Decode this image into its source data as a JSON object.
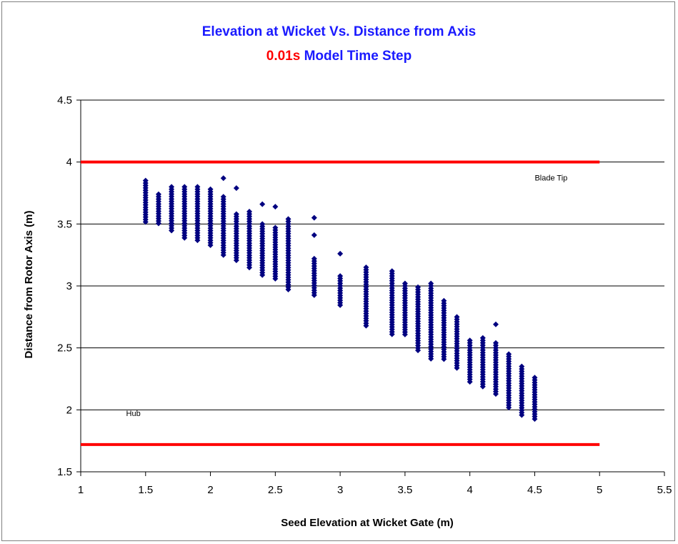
{
  "chart_data": {
    "type": "scatter",
    "title_line1": "Elevation at Wicket Vs. Distance from Axis",
    "title_line2_accent": "0.01s",
    "title_line2_rest": " Model Time Step",
    "xlabel": "Seed Elevation at Wicket Gate (m)",
    "ylabel": "Distance from Rotor Axis (m)",
    "xlim": [
      1,
      5.5
    ],
    "ylim": [
      1.5,
      4.5
    ],
    "x_ticks": [
      "1",
      "1.5",
      "2",
      "2.5",
      "3",
      "3.5",
      "4",
      "4.5",
      "5",
      "5.5"
    ],
    "y_ticks": [
      "1.5",
      "2",
      "2.5",
      "3",
      "3.5",
      "4",
      "4.5"
    ],
    "grid": "horizontal",
    "marker_color": "#000080",
    "line_color": "#ff0000",
    "reference_lines": [
      {
        "label": "Blade Tip",
        "y": 4.0,
        "x_start": 1,
        "x_end": 5,
        "label_x": 4.5,
        "label_y": 3.85
      },
      {
        "label": "Hub",
        "y": 1.72,
        "x_start": 1,
        "x_end": 5,
        "label_x": 1.35,
        "label_y": 1.95
      }
    ],
    "columns": [
      {
        "x": 1.5,
        "min": 3.51,
        "max": 3.85,
        "outliers": []
      },
      {
        "x": 1.6,
        "min": 3.49,
        "max": 3.74,
        "outliers": []
      },
      {
        "x": 1.7,
        "min": 3.43,
        "max": 3.8,
        "outliers": []
      },
      {
        "x": 1.8,
        "min": 3.38,
        "max": 3.8,
        "outliers": []
      },
      {
        "x": 1.9,
        "min": 3.36,
        "max": 3.8,
        "outliers": []
      },
      {
        "x": 2.0,
        "min": 3.31,
        "max": 3.78,
        "outliers": []
      },
      {
        "x": 2.1,
        "min": 3.23,
        "max": 3.72,
        "outliers": [
          3.87
        ]
      },
      {
        "x": 2.2,
        "min": 3.2,
        "max": 3.58,
        "outliers": [
          3.79
        ]
      },
      {
        "x": 2.3,
        "min": 3.14,
        "max": 3.6,
        "outliers": []
      },
      {
        "x": 2.4,
        "min": 3.08,
        "max": 3.5,
        "outliers": [
          3.66
        ]
      },
      {
        "x": 2.5,
        "min": 3.05,
        "max": 3.47,
        "outliers": [
          3.64
        ]
      },
      {
        "x": 2.6,
        "min": 2.97,
        "max": 3.54,
        "outliers": []
      },
      {
        "x": 2.8,
        "min": 2.92,
        "max": 3.22,
        "outliers": [
          3.41,
          3.55
        ]
      },
      {
        "x": 3.0,
        "min": 2.83,
        "max": 3.08,
        "outliers": [
          3.26
        ]
      },
      {
        "x": 3.2,
        "min": 2.67,
        "max": 3.15,
        "outliers": []
      },
      {
        "x": 3.4,
        "min": 2.61,
        "max": 3.12,
        "outliers": []
      },
      {
        "x": 3.5,
        "min": 2.59,
        "max": 3.02,
        "outliers": []
      },
      {
        "x": 3.6,
        "min": 2.48,
        "max": 2.99,
        "outliers": []
      },
      {
        "x": 3.7,
        "min": 2.41,
        "max": 3.02,
        "outliers": []
      },
      {
        "x": 3.8,
        "min": 2.4,
        "max": 2.88,
        "outliers": []
      },
      {
        "x": 3.9,
        "min": 2.32,
        "max": 2.75,
        "outliers": []
      },
      {
        "x": 4.0,
        "min": 2.22,
        "max": 2.56,
        "outliers": []
      },
      {
        "x": 4.1,
        "min": 2.17,
        "max": 2.58,
        "outliers": []
      },
      {
        "x": 4.2,
        "min": 2.11,
        "max": 2.54,
        "outliers": [
          2.69
        ]
      },
      {
        "x": 4.3,
        "min": 2.0,
        "max": 2.45,
        "outliers": []
      },
      {
        "x": 4.4,
        "min": 1.95,
        "max": 2.35,
        "outliers": []
      },
      {
        "x": 4.5,
        "min": 1.91,
        "max": 2.26,
        "outliers": []
      }
    ]
  }
}
